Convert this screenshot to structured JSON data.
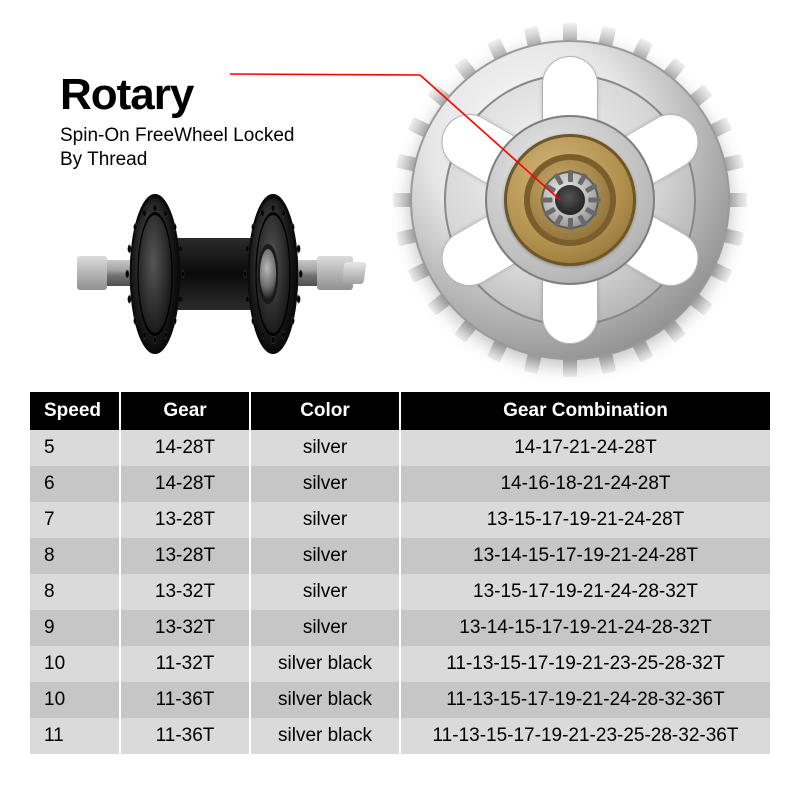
{
  "hero": {
    "title": "Rotary",
    "subtitle_line1": "Spin-On FreeWheel Locked",
    "subtitle_line2": "By Thread",
    "callout_color": "#ff0000"
  },
  "illustration": {
    "hub_color": "#1a1a1a",
    "axle_color": "#9a9a9a",
    "sprocket_silver": "#d0d0d0",
    "sprocket_brass": "#b2914e",
    "tooth_count": 28,
    "cutout_count": 6,
    "spline_count": 12
  },
  "table": {
    "columns": [
      "Speed",
      "Gear",
      "Color",
      "Gear Combination"
    ],
    "header_bg": "#000000",
    "header_fg": "#ffffff",
    "row_bg_a": "#dadada",
    "row_bg_b": "#c6c6c6",
    "rows": [
      {
        "speed": "5",
        "gear": "14-28T",
        "color": "silver",
        "combo": "14-17-21-24-28T"
      },
      {
        "speed": "6",
        "gear": "14-28T",
        "color": "silver",
        "combo": "14-16-18-21-24-28T"
      },
      {
        "speed": "7",
        "gear": "13-28T",
        "color": "silver",
        "combo": "13-15-17-19-21-24-28T"
      },
      {
        "speed": "8",
        "gear": "13-28T",
        "color": "silver",
        "combo": "13-14-15-17-19-21-24-28T"
      },
      {
        "speed": "8",
        "gear": "13-32T",
        "color": "silver",
        "combo": "13-15-17-19-21-24-28-32T"
      },
      {
        "speed": "9",
        "gear": "13-32T",
        "color": "silver",
        "combo": "13-14-15-17-19-21-24-28-32T"
      },
      {
        "speed": "10",
        "gear": "11-32T",
        "color": "silver black",
        "combo": "11-13-15-17-19-21-23-25-28-32T"
      },
      {
        "speed": "10",
        "gear": "11-36T",
        "color": "silver black",
        "combo": "11-13-15-17-19-21-24-28-32-36T"
      },
      {
        "speed": "11",
        "gear": "11-36T",
        "color": "silver black",
        "combo": "11-13-15-17-19-21-23-25-28-32-36T"
      }
    ]
  }
}
